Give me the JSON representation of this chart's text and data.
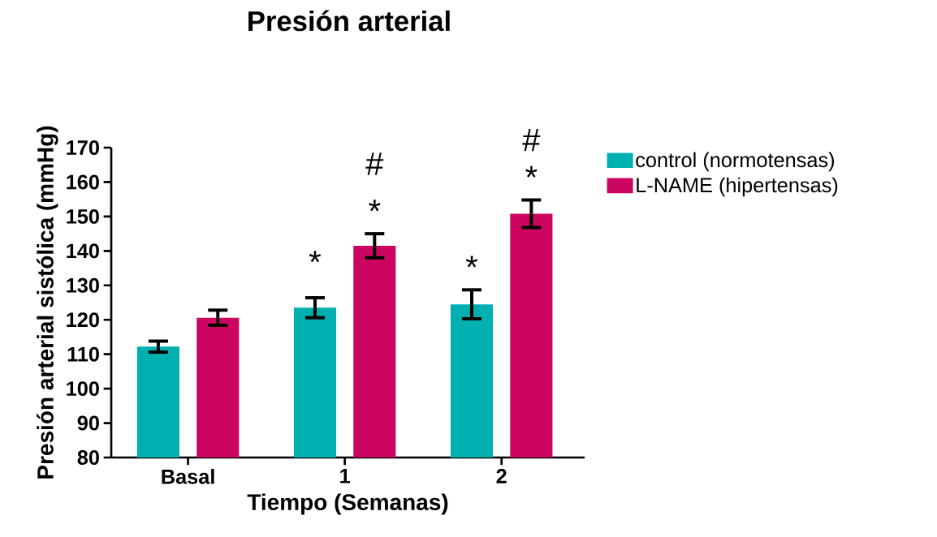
{
  "chart_data": {
    "type": "bar",
    "title": "Presión arterial",
    "xlabel": "Tiempo (Semanas)",
    "ylabel": "Presión arterial sistólica (mmHg)",
    "categories": [
      "Basal",
      "1",
      "2"
    ],
    "series": [
      {
        "name": "control (normotensas)",
        "color": "#00b0b0",
        "values": [
          112.2,
          123.5,
          124.5
        ],
        "errors": [
          1.6,
          2.9,
          4.2
        ]
      },
      {
        "name": "L-NAME (hipertensas)",
        "color": "#cc0660",
        "values": [
          120.6,
          141.5,
          150.8
        ],
        "errors": [
          2.2,
          3.5,
          4.0
        ]
      }
    ],
    "ylim": [
      80,
      170
    ],
    "yticks": [
      80,
      90,
      100,
      110,
      120,
      130,
      140,
      150,
      160,
      170
    ],
    "legend": "right",
    "annotations": [
      "*",
      "*",
      "#",
      "*",
      "*",
      "#"
    ]
  }
}
